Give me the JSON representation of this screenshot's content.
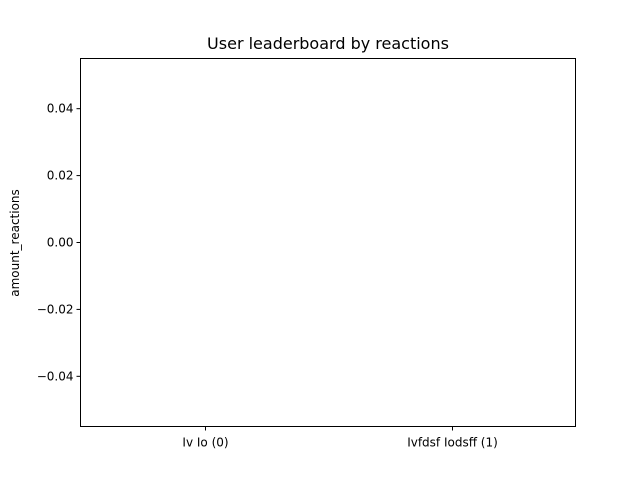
{
  "chart_data": {
    "type": "bar",
    "title": "User leaderboard by reactions",
    "xlabel": "",
    "ylabel": "amount_reactions",
    "categories": [
      "Iv Io (0)",
      "Ivfdsf Iodsff (1)"
    ],
    "values": [
      0,
      0
    ],
    "ylim": [
      -0.055,
      0.055
    ],
    "yticks": [
      0.04,
      0.02,
      0.0,
      -0.02,
      -0.04
    ],
    "ytick_labels": [
      "0.04",
      "0.02",
      "0.00",
      "−0.02",
      "−0.04"
    ],
    "grid": false,
    "legend": "none",
    "colors": {
      "axes": "#000000",
      "bar": "#1f77b4",
      "background": "#ffffff"
    }
  }
}
